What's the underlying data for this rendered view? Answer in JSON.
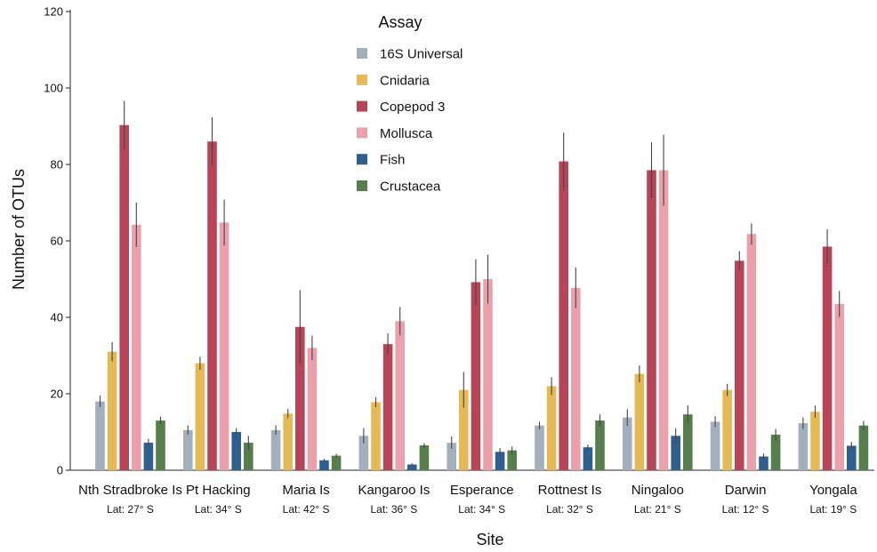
{
  "chart_data": {
    "type": "bar",
    "xlabel": "Site",
    "ylabel": "Number of OTUs",
    "ylim": [
      0,
      120
    ],
    "yticks": [
      0,
      20,
      40,
      60,
      80,
      100,
      120
    ],
    "grid": false,
    "legend": {
      "title": "Assay",
      "placement": "top-center"
    },
    "categories": [
      "Nth Stradbroke Is",
      "Pt Hacking",
      "Maria Is",
      "Kangaroo Is",
      "Esperance",
      "Rottnest Is",
      "Ningaloo",
      "Darwin",
      "Yongala"
    ],
    "sublabels": [
      "Lat: 27° S",
      "Lat: 34° S",
      "Lat: 42° S",
      "Lat: 36° S",
      "Lat: 34° S",
      "Lat: 32° S",
      "Lat: 21° S",
      "Lat: 12° S",
      "Lat: 19° S"
    ],
    "series": [
      {
        "name": "16S Universal",
        "color": "#a3afbc",
        "values": [
          18,
          10.5,
          10.5,
          9,
          7.2,
          11.7,
          13.8,
          12.7,
          12.3
        ],
        "errors": [
          1.5,
          1.2,
          1.2,
          2,
          1.6,
          1,
          2.2,
          1.4,
          1.5
        ]
      },
      {
        "name": "Cnidaria",
        "color": "#e6b957",
        "values": [
          31,
          28,
          14.8,
          17.8,
          21,
          22,
          25.2,
          21,
          15.3
        ],
        "errors": [
          2.5,
          1.7,
          1.2,
          1.3,
          4.7,
          2.3,
          2.2,
          1.6,
          1.6
        ]
      },
      {
        "name": "Copepod 3",
        "color": "#b84458",
        "values": [
          90.3,
          86,
          37.5,
          33,
          49.2,
          80.8,
          78.5,
          54.8,
          58.5
        ],
        "errors": [
          6.3,
          6.3,
          9.6,
          2.8,
          6,
          7.5,
          7.3,
          2.5,
          4.5
        ]
      },
      {
        "name": "Mollusca",
        "color": "#eba1ab",
        "values": [
          64.2,
          64.8,
          32,
          39,
          50,
          47.7,
          78.5,
          61.8,
          43.5
        ],
        "errors": [
          5.8,
          6,
          3.2,
          3.7,
          6.4,
          5.3,
          9.3,
          2.8,
          3.4
        ]
      },
      {
        "name": "Fish",
        "color": "#2f5f8e",
        "values": [
          7.2,
          10,
          2.6,
          1.5,
          4.8,
          6,
          9,
          3.6,
          6.4
        ],
        "errors": [
          1,
          1,
          0.4,
          0.3,
          1,
          0.7,
          2,
          0.8,
          1
        ]
      },
      {
        "name": "Crustacea",
        "color": "#567e4c",
        "values": [
          13,
          7.2,
          3.8,
          6.5,
          5.2,
          13,
          14.6,
          9.3,
          11.7
        ],
        "errors": [
          1,
          1.8,
          0.5,
          0.6,
          1,
          1.6,
          2.4,
          1.5,
          1.2
        ]
      }
    ]
  }
}
